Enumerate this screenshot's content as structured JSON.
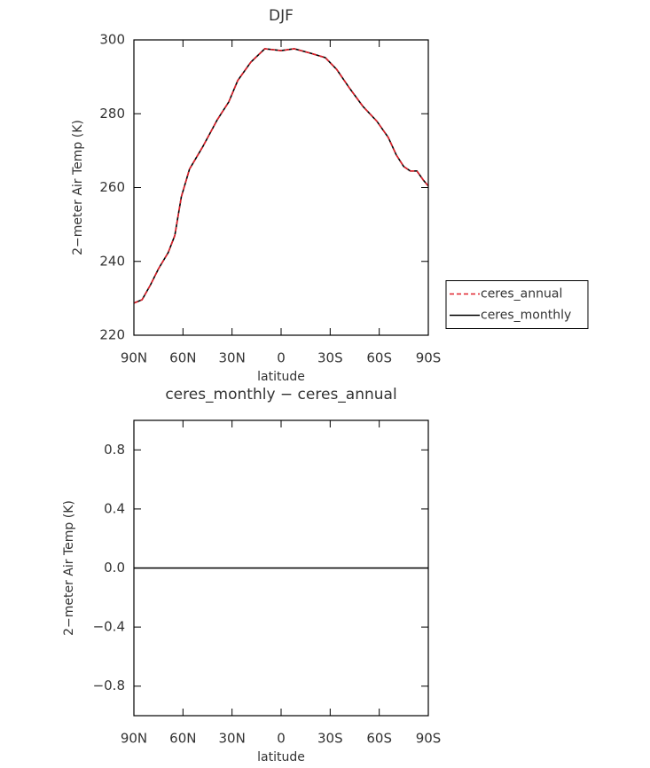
{
  "chart_data": [
    {
      "type": "line",
      "title": "DJF",
      "xlabel": "latitude",
      "ylabel": "2−meter Air Temp (K)",
      "x": [
        90,
        85,
        80,
        75,
        69,
        65,
        61,
        56,
        48,
        39,
        32,
        26.5,
        18.5,
        10,
        0,
        -8,
        -18,
        -27,
        -34,
        -42,
        -50,
        -58.5,
        -65.5,
        -70.5,
        -75,
        -79,
        -83,
        -87,
        -90
      ],
      "series": [
        {
          "name": "ceres_annual",
          "color": "#e0202a",
          "dash": true,
          "values": [
            228.7,
            229.6,
            233.5,
            238,
            242.4,
            247,
            257.5,
            265,
            271,
            278.4,
            283.2,
            289,
            294,
            297.6,
            297.1,
            297.6,
            296.4,
            295.2,
            292,
            286.8,
            282,
            278,
            273.6,
            268.8,
            265.7,
            264.5,
            264.5,
            262,
            260.4
          ]
        },
        {
          "name": "ceres_monthly",
          "color": "#000000",
          "dash": false,
          "values": [
            228.7,
            229.6,
            233.5,
            238,
            242.4,
            247,
            257.5,
            265,
            271,
            278.4,
            283.2,
            289,
            294,
            297.6,
            297.1,
            297.6,
            296.4,
            295.2,
            292,
            286.8,
            282,
            278,
            273.6,
            268.8,
            265.7,
            264.5,
            264.5,
            262,
            260.4
          ]
        }
      ],
      "xlim": [
        90,
        -90
      ],
      "xticks": [
        {
          "value": 90,
          "label": "90N"
        },
        {
          "value": 60,
          "label": "60N"
        },
        {
          "value": 30,
          "label": "30N"
        },
        0,
        {
          "value": -30,
          "label": "30S"
        },
        {
          "value": -60,
          "label": "60S"
        },
        {
          "value": -90,
          "label": "90S"
        }
      ],
      "ylim": [
        220,
        300
      ],
      "yticks": [
        220,
        240,
        260,
        280,
        300
      ],
      "legend": "right"
    },
    {
      "type": "line",
      "title": "ceres_monthly − ceres_annual",
      "xlabel": "latitude",
      "ylabel": "2−meter Air Temp (K)",
      "x": [
        90,
        -90
      ],
      "color": "#000000",
      "values": [
        0,
        0
      ],
      "xlim": [
        90,
        -90
      ],
      "xticks": [
        {
          "value": 90,
          "label": "90N"
        },
        {
          "value": 60,
          "label": "60N"
        },
        {
          "value": 30,
          "label": "30N"
        },
        0,
        {
          "value": -30,
          "label": "30S"
        },
        {
          "value": -60,
          "label": "60S"
        },
        {
          "value": -90,
          "label": "90S"
        }
      ],
      "ylim": [
        -1,
        1
      ],
      "yticks": [
        {
          "value": -0.8,
          "label": "−0.8"
        },
        {
          "value": -0.4,
          "label": "−0.4"
        },
        {
          "value": 0,
          "label": "0.0"
        },
        0.4,
        0.8
      ]
    }
  ]
}
